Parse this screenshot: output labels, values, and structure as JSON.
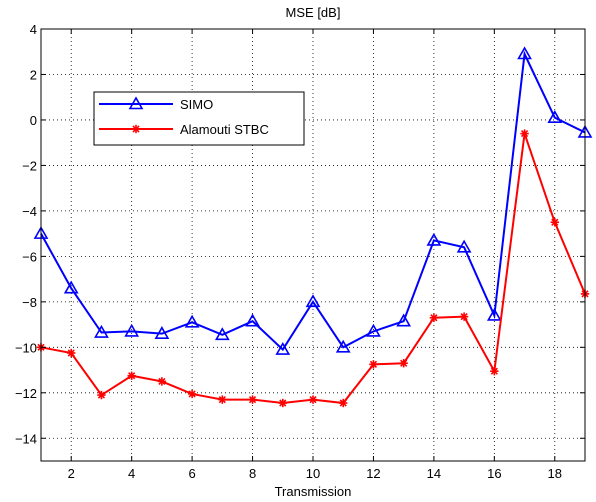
{
  "chart_data": {
    "type": "line",
    "title": "MSE [dB]",
    "xlabel": "Transmission",
    "ylabel": "",
    "xlim": [
      1,
      19
    ],
    "ylim": [
      -15,
      4
    ],
    "xticks": [
      2,
      4,
      6,
      8,
      10,
      12,
      14,
      16,
      18
    ],
    "yticks": [
      4,
      2,
      0,
      -2,
      -4,
      -6,
      -8,
      -10,
      -12,
      -14
    ],
    "grid": true,
    "legend_position": "upper-left",
    "x": [
      1,
      2,
      3,
      4,
      5,
      6,
      7,
      8,
      9,
      10,
      11,
      12,
      13,
      14,
      15,
      16,
      17,
      18,
      19
    ],
    "series": [
      {
        "name": "SIMO",
        "color": "#0000ff",
        "marker": "triangle",
        "values": [
          -5.0,
          -7.4,
          -9.35,
          -9.3,
          -9.4,
          -8.9,
          -9.45,
          -8.85,
          -10.1,
          -8.0,
          -10.0,
          -9.3,
          -8.85,
          -5.3,
          -5.6,
          -8.6,
          2.9,
          0.1,
          -0.55
        ]
      },
      {
        "name": "Alamouti STBC",
        "color": "#ff0000",
        "marker": "asterisk",
        "values": [
          -10.0,
          -10.25,
          -12.1,
          -11.25,
          -11.5,
          -12.05,
          -12.3,
          -12.3,
          -12.45,
          -12.3,
          -12.45,
          -10.75,
          -10.7,
          -8.7,
          -8.65,
          -11.05,
          -0.6,
          -4.5,
          -7.65
        ]
      }
    ]
  }
}
